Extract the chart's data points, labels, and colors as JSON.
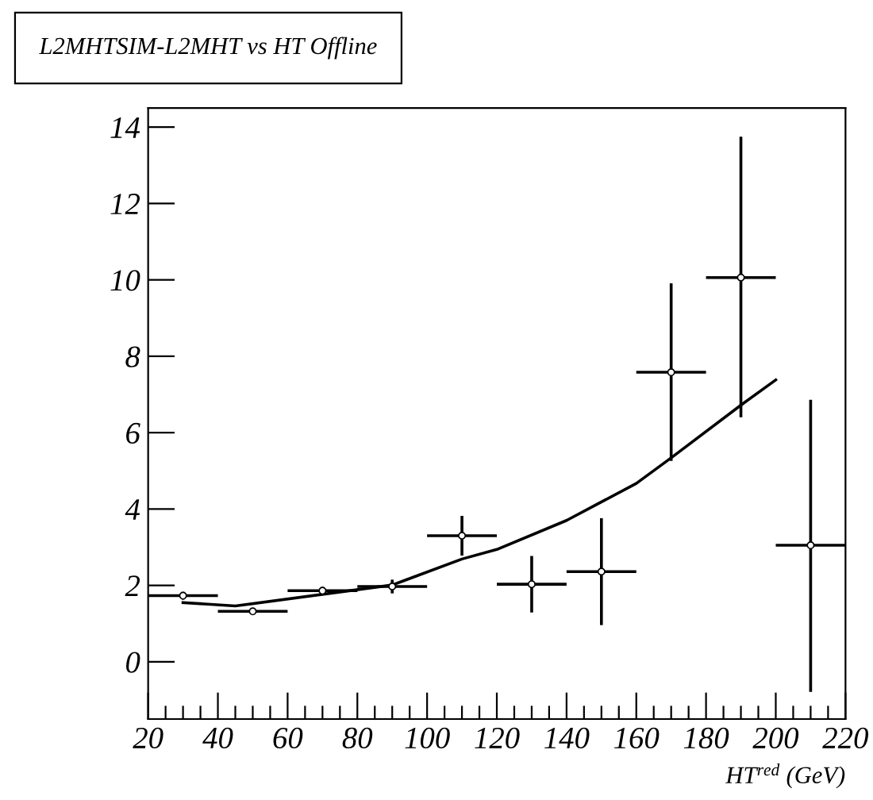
{
  "chart_data": {
    "type": "scatter",
    "title": "L2MHTSIM-L2MHT vs HT Offline",
    "xlabel": "HT$^{red}$ (GeV)",
    "xlim": [
      20,
      220
    ],
    "xticks": [
      20,
      40,
      60,
      80,
      100,
      120,
      140,
      160,
      180,
      200,
      220
    ],
    "ylim": [
      -1.5,
      14.5
    ],
    "yticks": [
      0,
      2,
      4,
      6,
      8,
      10,
      12,
      14
    ],
    "grid": false,
    "legend": false,
    "marker": "circle",
    "series": [
      {
        "color": "#000000",
        "x": [
          30,
          50,
          70,
          90,
          110,
          130,
          150,
          170,
          190,
          210
        ],
        "values": [
          1.73,
          1.32,
          1.86,
          1.97,
          3.3,
          2.03,
          2.36,
          7.58,
          10.06,
          3.05
        ],
        "xerrors": [
          10,
          10,
          10,
          10,
          10,
          10,
          10,
          10,
          10,
          10
        ],
        "errors": [
          0.1,
          0.05,
          0.1,
          0.18,
          0.52,
          0.74,
          1.4,
          [
            5.26,
            9.91
          ],
          [
            6.4,
            13.75
          ],
          [
            -0.79,
            6.86
          ]
        ]
      },
      {
        "type": "line",
        "color": "#000000",
        "line_style": "solid",
        "marker": "none",
        "x": [
          30,
          45,
          90,
          110,
          120,
          140,
          160,
          170,
          190,
          200
        ],
        "values": [
          1.55,
          1.46,
          2.01,
          2.69,
          2.94,
          3.7,
          4.67,
          5.34,
          6.72,
          7.38
        ]
      }
    ]
  }
}
